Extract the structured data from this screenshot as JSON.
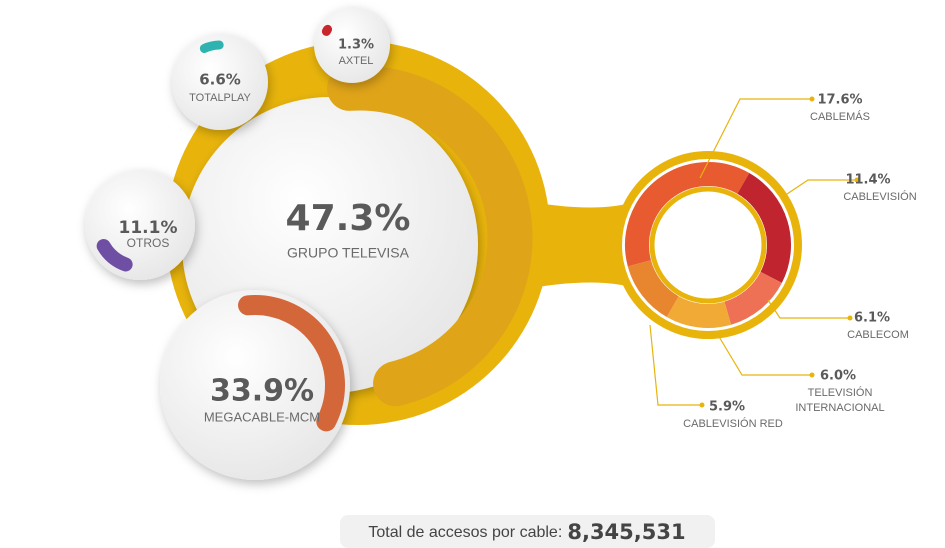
{
  "chart_data": [
    {
      "type": "bubble",
      "categories": [
        "GRUPO TELEVISA",
        "MEGACABLE-MCM",
        "OTROS",
        "TOTALPLAY",
        "AXTEL"
      ],
      "values": [
        47.3,
        33.9,
        11.1,
        6.6,
        1.3
      ],
      "value_labels": [
        "47.3%",
        "33.9%",
        "11.1%",
        "6.6%",
        "1.3%"
      ],
      "colors": [
        "#e0a418",
        "#d4673a",
        "#6f4fa3",
        "#2fb3b0",
        "#c9252c"
      ]
    },
    {
      "type": "donut",
      "categories": [
        "CABLEMÁS",
        "CABLEVISIÓN",
        "CABLECOM",
        "TELEVISIÓN INTERNACIONAL",
        "CABLEVISIÓN RED"
      ],
      "values": [
        17.6,
        11.4,
        6.1,
        6.0,
        5.9
      ],
      "value_labels": [
        "17.6%",
        "11.4%",
        "6.1%",
        "6.0%",
        "5.9%"
      ],
      "colors": [
        "#e85a30",
        "#c0252f",
        "#ee7055",
        "#f0aa35",
        "#e8862f"
      ]
    }
  ],
  "footer": {
    "label": "Total de accesos por cable:",
    "total": "8,345,531"
  }
}
